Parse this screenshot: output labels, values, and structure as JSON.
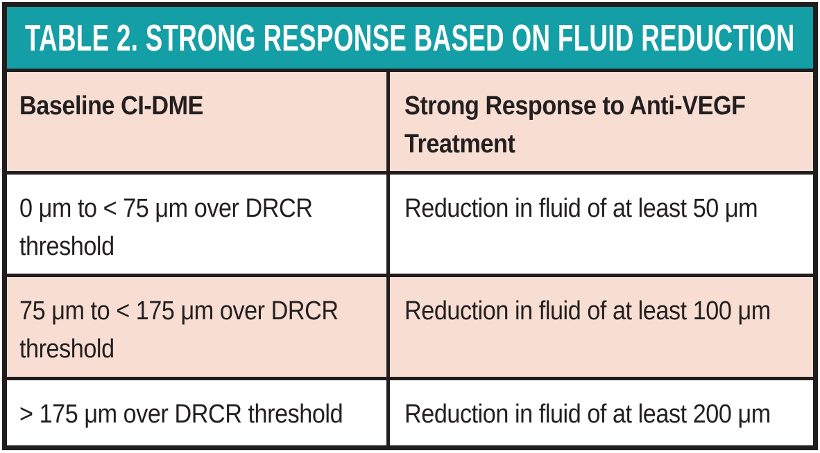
{
  "table": {
    "title": "TABLE 2. STRONG RESPONSE BASED ON FLUID REDUCTION",
    "columns": [
      {
        "label": "Baseline CI-DME"
      },
      {
        "label": "Strong Response to Anti-VEGF Treatment"
      }
    ],
    "rows": [
      {
        "baseline": "0 μm to < 75 μm over DRCR threshold",
        "response": "Reduction in fluid of at least 50 μm",
        "shaded": false
      },
      {
        "baseline": "75 μm to < 175 μm over DRCR threshold",
        "response": "Reduction in fluid of at least 100 μm",
        "shaded": true
      },
      {
        "baseline": "> 175 μm over DRCR threshold",
        "response": "Reduction in fluid of at least 200 μm",
        "shaded": false
      }
    ]
  },
  "colors": {
    "title_background": "#149ea5",
    "title_text": "#ffffff",
    "shaded_row_background": "#f8ded2",
    "border": "#211d1e",
    "body_text": "#231f20"
  }
}
